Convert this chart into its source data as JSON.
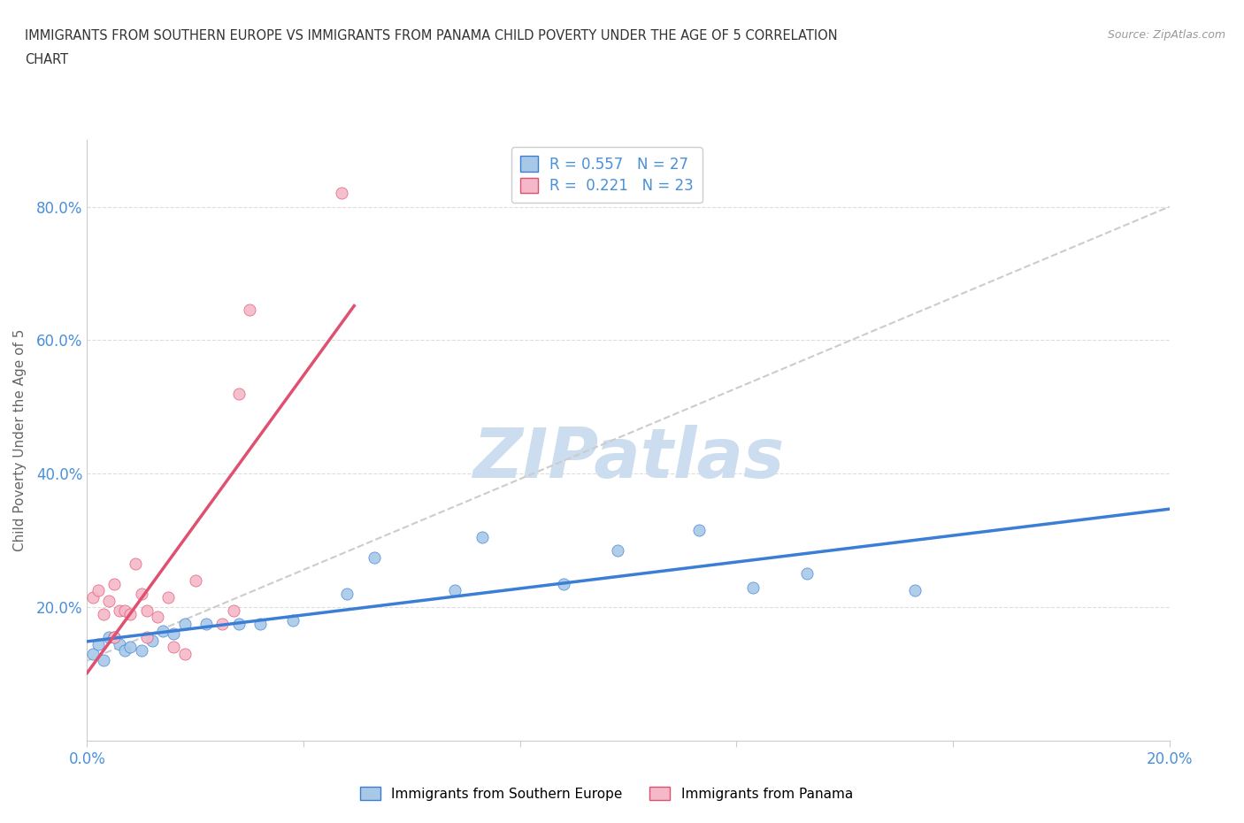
{
  "title_line1": "IMMIGRANTS FROM SOUTHERN EUROPE VS IMMIGRANTS FROM PANAMA CHILD POVERTY UNDER THE AGE OF 5 CORRELATION",
  "title_line2": "CHART",
  "source": "Source: ZipAtlas.com",
  "ylabel": "Child Poverty Under the Age of 5",
  "xlim": [
    0.0,
    0.2
  ],
  "ylim": [
    0.0,
    0.9
  ],
  "r_blue": 0.557,
  "n_blue": 27,
  "r_pink": 0.221,
  "n_pink": 23,
  "blue_color": "#a8c8e8",
  "pink_color": "#f5b8c8",
  "trendline_blue_color": "#3a7fd5",
  "trendline_pink_color": "#e05070",
  "trendline_grey_color": "#cccccc",
  "scatter_blue": [
    [
      0.001,
      0.13
    ],
    [
      0.002,
      0.145
    ],
    [
      0.003,
      0.12
    ],
    [
      0.004,
      0.155
    ],
    [
      0.005,
      0.155
    ],
    [
      0.006,
      0.145
    ],
    [
      0.007,
      0.135
    ],
    [
      0.008,
      0.14
    ],
    [
      0.01,
      0.135
    ],
    [
      0.012,
      0.15
    ],
    [
      0.014,
      0.165
    ],
    [
      0.016,
      0.16
    ],
    [
      0.018,
      0.175
    ],
    [
      0.022,
      0.175
    ],
    [
      0.028,
      0.175
    ],
    [
      0.032,
      0.175
    ],
    [
      0.038,
      0.18
    ],
    [
      0.048,
      0.22
    ],
    [
      0.053,
      0.275
    ],
    [
      0.068,
      0.225
    ],
    [
      0.073,
      0.305
    ],
    [
      0.088,
      0.235
    ],
    [
      0.098,
      0.285
    ],
    [
      0.113,
      0.315
    ],
    [
      0.123,
      0.23
    ],
    [
      0.133,
      0.25
    ],
    [
      0.153,
      0.225
    ]
  ],
  "scatter_pink": [
    [
      0.001,
      0.215
    ],
    [
      0.002,
      0.225
    ],
    [
      0.003,
      0.19
    ],
    [
      0.004,
      0.21
    ],
    [
      0.005,
      0.235
    ],
    [
      0.005,
      0.155
    ],
    [
      0.006,
      0.195
    ],
    [
      0.007,
      0.195
    ],
    [
      0.008,
      0.19
    ],
    [
      0.009,
      0.265
    ],
    [
      0.01,
      0.22
    ],
    [
      0.011,
      0.195
    ],
    [
      0.011,
      0.155
    ],
    [
      0.013,
      0.185
    ],
    [
      0.015,
      0.215
    ],
    [
      0.016,
      0.14
    ],
    [
      0.018,
      0.13
    ],
    [
      0.02,
      0.24
    ],
    [
      0.025,
      0.175
    ],
    [
      0.027,
      0.195
    ],
    [
      0.028,
      0.52
    ],
    [
      0.03,
      0.645
    ],
    [
      0.047,
      0.82
    ]
  ],
  "watermark": "ZIPatlas",
  "watermark_color": "#ccddf0",
  "background_color": "#ffffff",
  "legend_font_color": "#4a90d9",
  "legend_label_blue": "Immigrants from Southern Europe",
  "legend_label_pink": "Immigrants from Panama"
}
